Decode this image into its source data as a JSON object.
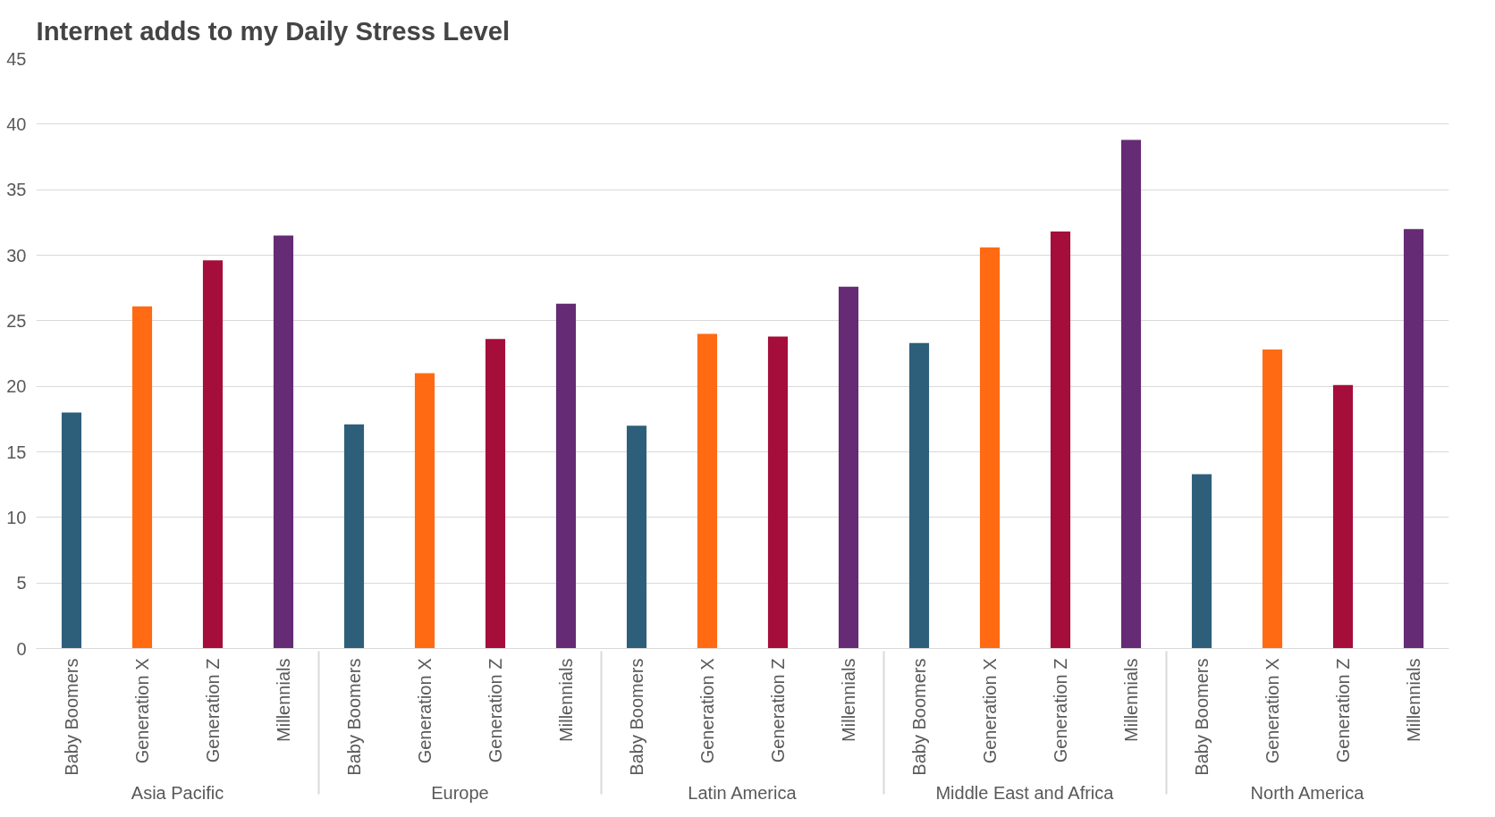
{
  "chart_data": {
    "type": "bar",
    "title": "Internet adds to my Daily Stress Level",
    "categories": [
      "Asia Pacific",
      "Europe",
      "Latin America",
      "Middle East and Africa",
      "North America"
    ],
    "series": [
      {
        "name": "Baby Boomers",
        "color": "#2e5f7a",
        "values": [
          18.0,
          17.1,
          17.0,
          23.3,
          13.3
        ]
      },
      {
        "name": "Generation X",
        "color": "#ff6a13",
        "values": [
          26.1,
          21.0,
          24.0,
          30.6,
          22.8
        ]
      },
      {
        "name": "Generation Z",
        "color": "#a50e3b",
        "values": [
          29.6,
          23.6,
          23.8,
          31.8,
          20.1
        ]
      },
      {
        "name": "Millennials",
        "color": "#652b74",
        "values": [
          31.5,
          26.3,
          27.6,
          38.8,
          32.0
        ]
      }
    ],
    "ylim": [
      0,
      45
    ],
    "yticks": [
      0,
      5,
      10,
      15,
      20,
      25,
      30,
      35,
      40,
      45
    ],
    "grid": "y"
  }
}
